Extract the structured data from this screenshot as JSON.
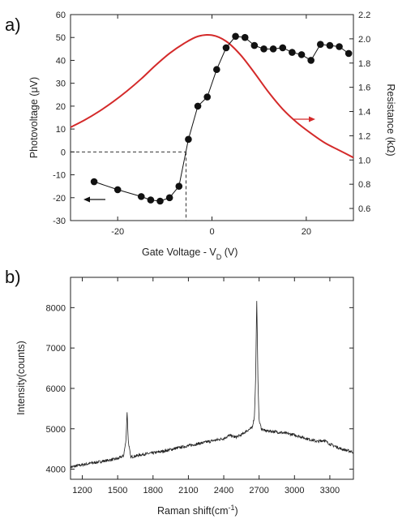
{
  "figure": {
    "panel_a_label": "a)",
    "panel_b_label": "b)"
  },
  "chart_data": [
    {
      "type": "line",
      "panel": "a",
      "xlabel": "Gate Voltage - V",
      "xlabel_sub": "D",
      "xlabel_unit": " (V)",
      "ylabel_left": "Photovoltage (μV)",
      "ylabel_right": "Resistance (kΩ)",
      "xlim": [
        -30,
        30
      ],
      "ylim_left": [
        -30,
        60
      ],
      "ylim_right": [
        0.5,
        2.2
      ],
      "xticks": [
        -20,
        0,
        20
      ],
      "yticks_left": [
        -30,
        -20,
        -10,
        0,
        10,
        20,
        30,
        40,
        50,
        60
      ],
      "yticks_right": [
        0.6,
        0.8,
        1.0,
        1.2,
        1.4,
        1.6,
        1.8,
        2.0,
        2.2
      ],
      "colors": {
        "photovoltage": "#111111",
        "resistance": "#d42a2a",
        "dashed": "#333333"
      },
      "series": [
        {
          "axis": "left",
          "style": "markers+line",
          "x": [
            -25,
            -20,
            -15,
            -13,
            -11,
            -9,
            -7,
            -5,
            -3,
            -1,
            1,
            3,
            5,
            7,
            9,
            11,
            13,
            15,
            17,
            19,
            21,
            23,
            25,
            27,
            29
          ],
          "values": [
            -13,
            -16.5,
            -19.5,
            -21,
            -21.5,
            -20,
            -15,
            5.5,
            20,
            24,
            36,
            45.5,
            50.5,
            50,
            46.5,
            45,
            45,
            45.5,
            43.5,
            42.5,
            40,
            47,
            46.5,
            46,
            43
          ]
        },
        {
          "axis": "right",
          "style": "line",
          "x": [
            -30,
            -27,
            -24,
            -21,
            -18,
            -15,
            -12,
            -9,
            -6,
            -3,
            0,
            3,
            6,
            9,
            12,
            15,
            18,
            21,
            24,
            27,
            30
          ],
          "values": [
            1.27,
            1.33,
            1.4,
            1.48,
            1.57,
            1.67,
            1.78,
            1.88,
            1.96,
            2.02,
            2.03,
            1.98,
            1.87,
            1.72,
            1.56,
            1.42,
            1.31,
            1.22,
            1.14,
            1.08,
            1.02
          ]
        }
      ],
      "dashed_guides": {
        "y": 0,
        "x": -5.5
      }
    },
    {
      "type": "line",
      "panel": "b",
      "xlabel": "Raman shift(cm",
      "xlabel_sup": "-1",
      "xlabel_close": ")",
      "ylabel": "Intensity(counts)",
      "xlim": [
        1100,
        3500
      ],
      "ylim": [
        3750,
        8750
      ],
      "xticks": [
        1200,
        1500,
        1800,
        2100,
        2400,
        2700,
        3000,
        3300
      ],
      "yticks": [
        4000,
        5000,
        6000,
        7000,
        8000
      ],
      "colors": {
        "line": "#222222"
      },
      "series": [
        {
          "x": [
            1100,
            1200,
            1300,
            1400,
            1500,
            1550,
            1570,
            1580,
            1590,
            1610,
            1700,
            1800,
            1900,
            2000,
            2100,
            2200,
            2300,
            2400,
            2450,
            2500,
            2550,
            2600,
            2640,
            2660,
            2670,
            2680,
            2690,
            2700,
            2720,
            2750,
            2800,
            2900,
            3000,
            3100,
            3200,
            3250,
            3300,
            3400,
            3500
          ],
          "values": [
            4050,
            4110,
            4160,
            4210,
            4260,
            4330,
            4700,
            5430,
            4700,
            4300,
            4360,
            4400,
            4450,
            4520,
            4580,
            4640,
            4700,
            4760,
            4840,
            4790,
            4850,
            4960,
            5020,
            5300,
            6200,
            8200,
            6200,
            5200,
            5000,
            4950,
            4940,
            4900,
            4850,
            4760,
            4680,
            4720,
            4620,
            4500,
            4420
          ]
        }
      ]
    }
  ]
}
